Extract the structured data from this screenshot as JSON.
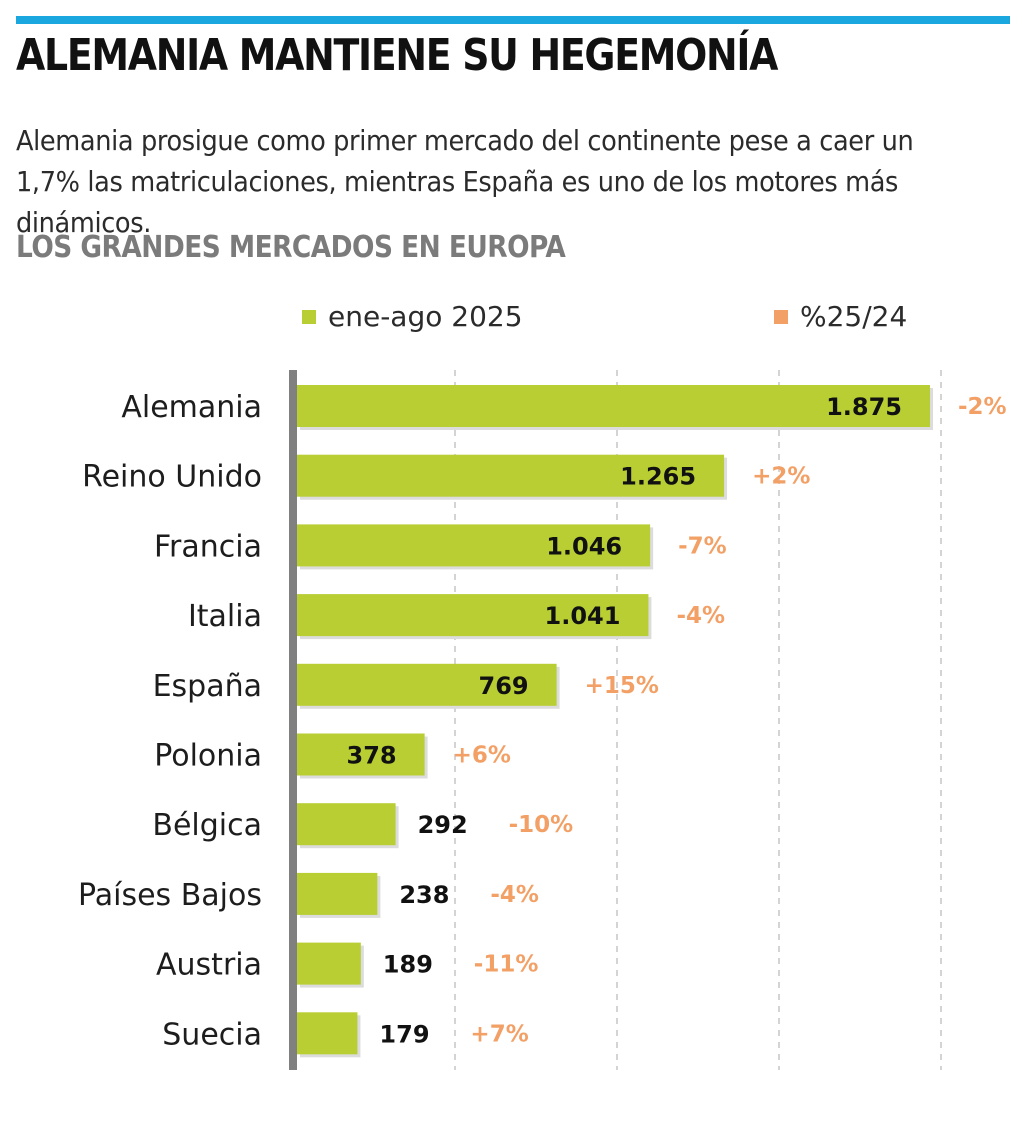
{
  "header": {
    "title": "ALEMANIA MANTIENE SU HEGEMONÍA",
    "subtitle": "Alemania prosigue como primer mercado del continente pese a caer un 1,7% las matriculaciones, mientras España es uno de los motores más dinámicos.",
    "section_title": "LOS GRANDES MERCADOS EN EUROPA"
  },
  "colors": {
    "accent": "#1aa6de",
    "bar": "#b8ce33",
    "pct": "#f2a066"
  },
  "chart_data": {
    "type": "bar",
    "orientation": "horizontal",
    "legend": [
      "ene-ago 2025",
      "%25/24"
    ],
    "categories": [
      "Alemania",
      "Reino Unido",
      "Francia",
      "Italia",
      "España",
      "Polonia",
      "Bélgica",
      "Países Bajos",
      "Austria",
      "Suecia"
    ],
    "values": [
      1875,
      1265,
      1046,
      1041,
      769,
      378,
      292,
      238,
      189,
      179
    ],
    "value_labels": [
      "1.875",
      "1.265",
      "1.046",
      "1.041",
      "769",
      "378",
      "292",
      "238",
      "189",
      "179"
    ],
    "pct_labels": [
      "-2%",
      "+2%",
      "-7%",
      "-4%",
      "+15%",
      "+6%",
      "-10%",
      "-4%",
      "-11%",
      "+7%"
    ],
    "xlim": [
      0,
      1900
    ],
    "grid": true
  }
}
